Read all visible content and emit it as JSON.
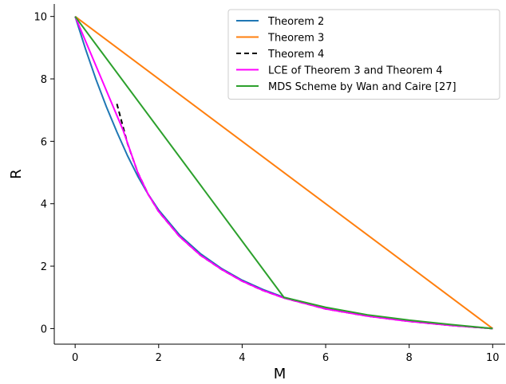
{
  "chart_data": {
    "type": "line",
    "title": "",
    "xlabel": "M",
    "ylabel": "R",
    "xlim": [
      -0.5,
      10.3
    ],
    "ylim": [
      -0.5,
      10.4
    ],
    "xticks": [
      0,
      2,
      4,
      6,
      8,
      10
    ],
    "yticks": [
      0,
      2,
      4,
      6,
      8,
      10
    ],
    "xtick_labels": [
      "0",
      "2",
      "4",
      "6",
      "8",
      "10"
    ],
    "ytick_labels": [
      "0",
      "2",
      "4",
      "6",
      "8",
      "10"
    ],
    "grid": false,
    "legend_position": "top-right",
    "series": [
      {
        "name": "Theorem 2",
        "color": "#1f77b4",
        "dash": "solid",
        "x": [
          0,
          0.25,
          0.5,
          0.75,
          1,
          1.25,
          1.5,
          1.75,
          2,
          2.5,
          3,
          3.5,
          4,
          4.5,
          5,
          6,
          7,
          8,
          9,
          10
        ],
        "y": [
          10,
          8.95,
          7.98,
          7.1,
          6.3,
          5.55,
          4.88,
          4.3,
          3.8,
          3.0,
          2.4,
          1.93,
          1.55,
          1.25,
          1.0,
          0.67,
          0.43,
          0.25,
          0.11,
          0
        ]
      },
      {
        "name": "Theorem 3",
        "color": "#ff7f0e",
        "dash": "solid",
        "x": [
          0,
          10
        ],
        "y": [
          10,
          0
        ]
      },
      {
        "name": "Theorem 4",
        "color": "#000000",
        "dash": "dashed",
        "x": [
          1,
          1.25,
          1.5,
          1.75,
          2,
          2.5,
          3,
          3.5,
          4,
          4.5,
          5,
          6,
          7,
          8,
          9,
          10
        ],
        "y": [
          7.2,
          5.95,
          5.0,
          4.3,
          3.75,
          2.95,
          2.35,
          1.9,
          1.52,
          1.22,
          0.98,
          0.63,
          0.4,
          0.23,
          0.1,
          0
        ]
      },
      {
        "name": "LCE of Theorem 3 and Theorem 4",
        "color": "#ff00ff",
        "dash": "solid",
        "x": [
          0,
          1.15,
          1.5,
          1.75,
          2,
          2.5,
          3,
          3.5,
          4,
          4.5,
          5,
          6,
          7,
          8,
          9,
          10
        ],
        "y": [
          10,
          6.35,
          5.0,
          4.3,
          3.75,
          2.95,
          2.35,
          1.9,
          1.52,
          1.22,
          0.98,
          0.63,
          0.4,
          0.23,
          0.1,
          0
        ]
      },
      {
        "name": "MDS Scheme by Wan and Caire [27]",
        "color": "#2ca02c",
        "dash": "solid",
        "x": [
          0,
          5,
          6,
          7,
          8,
          9,
          10
        ],
        "y": [
          10,
          1.0,
          0.68,
          0.44,
          0.27,
          0.13,
          0
        ]
      }
    ]
  }
}
